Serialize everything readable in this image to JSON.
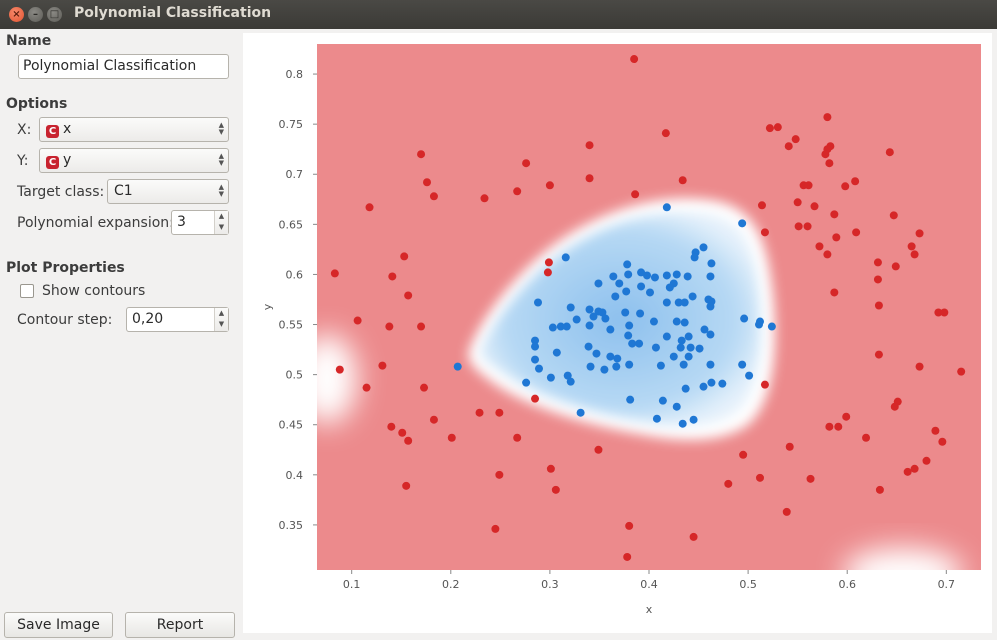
{
  "window": {
    "title": "Polynomial Classification"
  },
  "name_section": {
    "title": "Name",
    "value": "Polynomial Classification"
  },
  "options": {
    "title": "Options",
    "x_label": "X:",
    "x_value": "x",
    "x_badge": "C",
    "y_label": "Y:",
    "y_value": "y",
    "y_badge": "C",
    "target_label": "Target class:",
    "target_value": "C1",
    "expansion_label": "Polynomial expansion:",
    "expansion_value": "3"
  },
  "plot_properties": {
    "title": "Plot Properties",
    "show_contours_label": "Show contours",
    "show_contours_checked": false,
    "contour_step_label": "Contour step:",
    "contour_step_value": "0,20"
  },
  "buttons": {
    "save_image": "Save Image",
    "report": "Report"
  },
  "colors": {
    "class_red": "#d62728",
    "class_blue": "#1f77d4",
    "region_red": "#ec8a8c",
    "region_blue": "#a8d0f2"
  },
  "chart_data": {
    "type": "scatter",
    "xlabel": "x",
    "ylabel": "y",
    "xlim": [
      0.065,
      0.735
    ],
    "ylim": [
      0.305,
      0.83
    ],
    "xticks": [
      "0.1",
      "0.2",
      "0.3",
      "0.4",
      "0.5",
      "0.6",
      "0.7"
    ],
    "yticks": [
      "0.35",
      "0.4",
      "0.45",
      "0.5",
      "0.55",
      "0.6",
      "0.65",
      "0.7",
      "0.75",
      "0.8"
    ],
    "series": [
      {
        "color": "#d62728",
        "points": [
          [
            0.385,
            0.815
          ],
          [
            0.58,
            0.757
          ],
          [
            0.417,
            0.741
          ],
          [
            0.522,
            0.746
          ],
          [
            0.53,
            0.747
          ],
          [
            0.548,
            0.735
          ],
          [
            0.34,
            0.729
          ],
          [
            0.583,
            0.728
          ],
          [
            0.58,
            0.725
          ],
          [
            0.578,
            0.72
          ],
          [
            0.541,
            0.728
          ],
          [
            0.643,
            0.722
          ],
          [
            0.17,
            0.72
          ],
          [
            0.276,
            0.711
          ],
          [
            0.582,
            0.711
          ],
          [
            0.34,
            0.696
          ],
          [
            0.176,
            0.692
          ],
          [
            0.434,
            0.694
          ],
          [
            0.3,
            0.689
          ],
          [
            0.556,
            0.689
          ],
          [
            0.561,
            0.689
          ],
          [
            0.598,
            0.688
          ],
          [
            0.608,
            0.693
          ],
          [
            0.267,
            0.683
          ],
          [
            0.386,
            0.68
          ],
          [
            0.183,
            0.678
          ],
          [
            0.234,
            0.676
          ],
          [
            0.55,
            0.672
          ],
          [
            0.567,
            0.668
          ],
          [
            0.118,
            0.667
          ],
          [
            0.514,
            0.669
          ],
          [
            0.587,
            0.66
          ],
          [
            0.647,
            0.659
          ],
          [
            0.56,
            0.648
          ],
          [
            0.551,
            0.648
          ],
          [
            0.517,
            0.642
          ],
          [
            0.673,
            0.641
          ],
          [
            0.609,
            0.642
          ],
          [
            0.589,
            0.637
          ],
          [
            0.572,
            0.628
          ],
          [
            0.665,
            0.628
          ],
          [
            0.58,
            0.62
          ],
          [
            0.668,
            0.62
          ],
          [
            0.153,
            0.618
          ],
          [
            0.299,
            0.612
          ],
          [
            0.631,
            0.612
          ],
          [
            0.298,
            0.602
          ],
          [
            0.083,
            0.601
          ],
          [
            0.649,
            0.608
          ],
          [
            0.141,
            0.598
          ],
          [
            0.631,
            0.595
          ],
          [
            0.157,
            0.579
          ],
          [
            0.587,
            0.582
          ],
          [
            0.632,
            0.569
          ],
          [
            0.106,
            0.554
          ],
          [
            0.17,
            0.548
          ],
          [
            0.138,
            0.548
          ],
          [
            0.692,
            0.562
          ],
          [
            0.698,
            0.562
          ],
          [
            0.632,
            0.52
          ],
          [
            0.131,
            0.509
          ],
          [
            0.088,
            0.505
          ],
          [
            0.673,
            0.508
          ],
          [
            0.517,
            0.49
          ],
          [
            0.715,
            0.503
          ],
          [
            0.115,
            0.487
          ],
          [
            0.173,
            0.487
          ],
          [
            0.285,
            0.476
          ],
          [
            0.651,
            0.473
          ],
          [
            0.648,
            0.468
          ],
          [
            0.229,
            0.462
          ],
          [
            0.249,
            0.462
          ],
          [
            0.599,
            0.458
          ],
          [
            0.183,
            0.455
          ],
          [
            0.591,
            0.448
          ],
          [
            0.582,
            0.448
          ],
          [
            0.14,
            0.448
          ],
          [
            0.151,
            0.442
          ],
          [
            0.689,
            0.444
          ],
          [
            0.267,
            0.437
          ],
          [
            0.157,
            0.434
          ],
          [
            0.201,
            0.437
          ],
          [
            0.619,
            0.437
          ],
          [
            0.696,
            0.433
          ],
          [
            0.542,
            0.428
          ],
          [
            0.349,
            0.425
          ],
          [
            0.495,
            0.42
          ],
          [
            0.68,
            0.414
          ],
          [
            0.301,
            0.406
          ],
          [
            0.668,
            0.406
          ],
          [
            0.661,
            0.403
          ],
          [
            0.249,
            0.4
          ],
          [
            0.512,
            0.397
          ],
          [
            0.563,
            0.396
          ],
          [
            0.48,
            0.391
          ],
          [
            0.155,
            0.389
          ],
          [
            0.306,
            0.385
          ],
          [
            0.633,
            0.385
          ],
          [
            0.539,
            0.363
          ],
          [
            0.245,
            0.346
          ],
          [
            0.38,
            0.349
          ],
          [
            0.445,
            0.338
          ],
          [
            0.378,
            0.318
          ]
        ]
      },
      {
        "color": "#1f77d4",
        "points": [
          [
            0.418,
            0.667
          ],
          [
            0.494,
            0.651
          ],
          [
            0.455,
            0.627
          ],
          [
            0.447,
            0.622
          ],
          [
            0.316,
            0.617
          ],
          [
            0.446,
            0.617
          ],
          [
            0.378,
            0.61
          ],
          [
            0.463,
            0.611
          ],
          [
            0.364,
            0.598
          ],
          [
            0.379,
            0.6
          ],
          [
            0.398,
            0.599
          ],
          [
            0.418,
            0.599
          ],
          [
            0.428,
            0.6
          ],
          [
            0.392,
            0.602
          ],
          [
            0.406,
            0.597
          ],
          [
            0.462,
            0.598
          ],
          [
            0.439,
            0.598
          ],
          [
            0.37,
            0.591
          ],
          [
            0.425,
            0.591
          ],
          [
            0.392,
            0.588
          ],
          [
            0.421,
            0.587
          ],
          [
            0.349,
            0.591
          ],
          [
            0.288,
            0.572
          ],
          [
            0.377,
            0.583
          ],
          [
            0.401,
            0.582
          ],
          [
            0.366,
            0.578
          ],
          [
            0.444,
            0.578
          ],
          [
            0.46,
            0.575
          ],
          [
            0.463,
            0.573
          ],
          [
            0.43,
            0.572
          ],
          [
            0.436,
            0.572
          ],
          [
            0.418,
            0.572
          ],
          [
            0.321,
            0.567
          ],
          [
            0.34,
            0.565
          ],
          [
            0.349,
            0.563
          ],
          [
            0.391,
            0.561
          ],
          [
            0.462,
            0.568
          ],
          [
            0.344,
            0.558
          ],
          [
            0.353,
            0.562
          ],
          [
            0.376,
            0.562
          ],
          [
            0.327,
            0.555
          ],
          [
            0.356,
            0.556
          ],
          [
            0.405,
            0.553
          ],
          [
            0.428,
            0.553
          ],
          [
            0.436,
            0.552
          ],
          [
            0.496,
            0.556
          ],
          [
            0.512,
            0.553
          ],
          [
            0.524,
            0.548
          ],
          [
            0.311,
            0.548
          ],
          [
            0.317,
            0.548
          ],
          [
            0.34,
            0.549
          ],
          [
            0.38,
            0.549
          ],
          [
            0.303,
            0.547
          ],
          [
            0.361,
            0.545
          ],
          [
            0.456,
            0.545
          ],
          [
            0.511,
            0.55
          ],
          [
            0.462,
            0.54
          ],
          [
            0.379,
            0.539
          ],
          [
            0.418,
            0.538
          ],
          [
            0.44,
            0.538
          ],
          [
            0.285,
            0.534
          ],
          [
            0.433,
            0.534
          ],
          [
            0.383,
            0.531
          ],
          [
            0.39,
            0.531
          ],
          [
            0.285,
            0.528
          ],
          [
            0.339,
            0.528
          ],
          [
            0.407,
            0.527
          ],
          [
            0.432,
            0.527
          ],
          [
            0.442,
            0.527
          ],
          [
            0.451,
            0.526
          ],
          [
            0.307,
            0.522
          ],
          [
            0.347,
            0.521
          ],
          [
            0.361,
            0.518
          ],
          [
            0.368,
            0.516
          ],
          [
            0.425,
            0.518
          ],
          [
            0.44,
            0.518
          ],
          [
            0.285,
            0.515
          ],
          [
            0.38,
            0.51
          ],
          [
            0.435,
            0.51
          ],
          [
            0.207,
            0.508
          ],
          [
            0.341,
            0.508
          ],
          [
            0.367,
            0.508
          ],
          [
            0.412,
            0.509
          ],
          [
            0.462,
            0.51
          ],
          [
            0.494,
            0.51
          ],
          [
            0.289,
            0.506
          ],
          [
            0.355,
            0.505
          ],
          [
            0.318,
            0.499
          ],
          [
            0.301,
            0.497
          ],
          [
            0.501,
            0.499
          ],
          [
            0.321,
            0.493
          ],
          [
            0.276,
            0.492
          ],
          [
            0.463,
            0.492
          ],
          [
            0.474,
            0.491
          ],
          [
            0.455,
            0.488
          ],
          [
            0.437,
            0.486
          ],
          [
            0.381,
            0.475
          ],
          [
            0.414,
            0.474
          ],
          [
            0.428,
            0.468
          ],
          [
            0.331,
            0.462
          ],
          [
            0.408,
            0.456
          ],
          [
            0.445,
            0.455
          ],
          [
            0.434,
            0.451
          ]
        ]
      }
    ]
  }
}
